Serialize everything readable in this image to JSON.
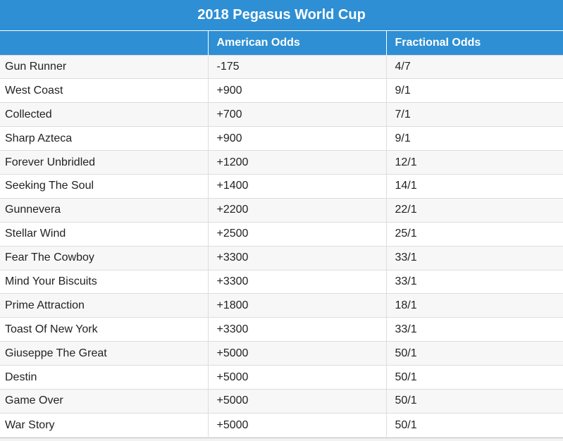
{
  "table": {
    "title": "2018 Pegasus World Cup",
    "headers": [
      "",
      "American Odds",
      "Fractional Odds"
    ],
    "rows": [
      {
        "horse": "Gun Runner",
        "american": "-175",
        "fractional": "4/7"
      },
      {
        "horse": "West Coast",
        "american": "+900",
        "fractional": "9/1"
      },
      {
        "horse": "Collected",
        "american": "+700",
        "fractional": "7/1"
      },
      {
        "horse": "Sharp Azteca",
        "american": "+900",
        "fractional": "9/1"
      },
      {
        "horse": "Forever Unbridled",
        "american": "+1200",
        "fractional": "12/1"
      },
      {
        "horse": "Seeking The Soul",
        "american": "+1400",
        "fractional": "14/1"
      },
      {
        "horse": "Gunnevera",
        "american": "+2200",
        "fractional": "22/1"
      },
      {
        "horse": "Stellar Wind",
        "american": "+2500",
        "fractional": "25/1"
      },
      {
        "horse": "Fear The Cowboy",
        "american": "+3300",
        "fractional": "33/1"
      },
      {
        "horse": "Mind Your Biscuits",
        "american": "+3300",
        "fractional": "33/1"
      },
      {
        "horse": "Prime Attraction",
        "american": "+1800",
        "fractional": "18/1"
      },
      {
        "horse": "Toast Of New York",
        "american": "+3300",
        "fractional": "33/1"
      },
      {
        "horse": "Giuseppe The Great",
        "american": "+5000",
        "fractional": "50/1"
      },
      {
        "horse": "Destin",
        "american": "+5000",
        "fractional": "50/1"
      },
      {
        "horse": "Game Over",
        "american": "+5000",
        "fractional": "50/1"
      },
      {
        "horse": "War Story",
        "american": "+5000",
        "fractional": "50/1"
      }
    ]
  },
  "colors": {
    "header_bg": "#2e8fd4",
    "header_text": "#ffffff",
    "row_alt": "#f7f7f7",
    "grid": "#dddddd"
  }
}
